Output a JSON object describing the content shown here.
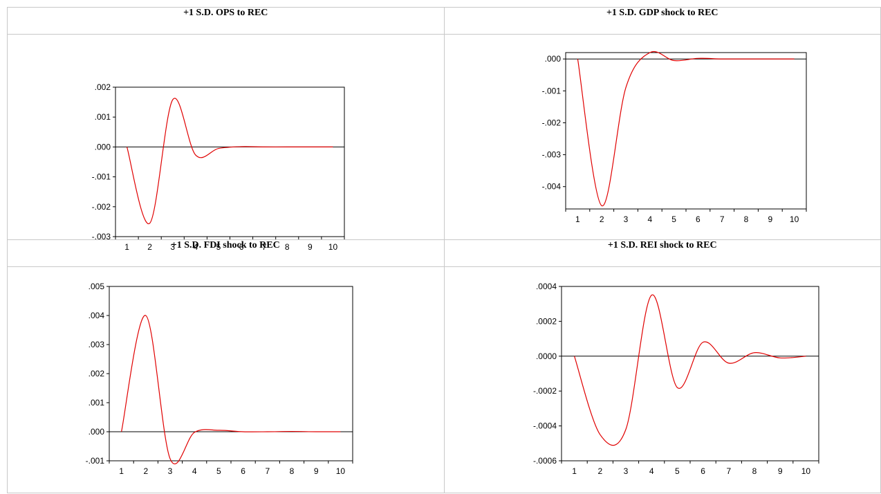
{
  "chart_data": [
    {
      "type": "line",
      "title": "+1 S.D. OPS to REC",
      "xlabel": "",
      "ylabel": "",
      "ylim": [
        -0.003,
        0.002
      ],
      "yticks": [
        0.002,
        0.001,
        0.0,
        -0.001,
        -0.002,
        -0.003
      ],
      "yticklabels": [
        ".002",
        ".001",
        ".000",
        "-.001",
        "-.002",
        "-.003"
      ],
      "xticklabels": [
        "1",
        "2",
        "3",
        "4",
        "5",
        "6",
        "7",
        "8",
        "9",
        "10"
      ],
      "series": [
        {
          "color": "#e00000",
          "x": [
            1,
            2,
            3,
            4,
            5,
            6,
            7,
            8,
            9,
            10
          ],
          "values": [
            0.0,
            -0.00255,
            0.00158,
            -0.00027,
            -5e-05,
            1e-05,
            0.0,
            0.0,
            0.0,
            0.0
          ]
        }
      ]
    },
    {
      "type": "line",
      "title": "+1 S.D. GDP shock to REC",
      "xlabel": "",
      "ylabel": "",
      "ylim": [
        -0.0047,
        0.0002
      ],
      "yticks": [
        0.0,
        -0.001,
        -0.002,
        -0.003,
        -0.004
      ],
      "yticklabels": [
        ".000",
        "-.001",
        "-.002",
        "-.003",
        "-.004"
      ],
      "xticklabels": [
        "1",
        "2",
        "3",
        "4",
        "5",
        "6",
        "7",
        "8",
        "9",
        "10"
      ],
      "series": [
        {
          "color": "#e00000",
          "x": [
            1,
            2,
            3,
            4,
            5,
            6,
            7,
            8,
            9,
            10
          ],
          "values": [
            0.0,
            -0.0046,
            -0.0009,
            0.0002,
            -5e-05,
            2e-05,
            0.0,
            0.0,
            0.0,
            0.0
          ]
        }
      ]
    },
    {
      "type": "line",
      "title": "+1 S.D. FDI shock to REC",
      "xlabel": "",
      "ylabel": "",
      "ylim": [
        -0.001,
        0.005
      ],
      "yticks": [
        0.005,
        0.004,
        0.003,
        0.002,
        0.001,
        0.0,
        -0.001
      ],
      "yticklabels": [
        ".005",
        ".004",
        ".003",
        ".002",
        ".001",
        ".000",
        "-.001"
      ],
      "xticklabels": [
        "1",
        "2",
        "3",
        "4",
        "5",
        "6",
        "7",
        "8",
        "9",
        "10"
      ],
      "series": [
        {
          "color": "#e00000",
          "x": [
            1,
            2,
            3,
            4,
            5,
            6,
            7,
            8,
            9,
            10
          ],
          "values": [
            0.0,
            0.004,
            -0.00093,
            -2e-05,
            5e-05,
            0.0,
            0.0,
            1e-05,
            0.0,
            0.0
          ]
        }
      ]
    },
    {
      "type": "line",
      "title": "+1 S.D. REI shock to REC",
      "xlabel": "",
      "ylabel": "",
      "ylim": [
        -0.0006,
        0.0004
      ],
      "yticks": [
        0.0004,
        0.0002,
        0.0,
        -0.0002,
        -0.0004,
        -0.0006
      ],
      "yticklabels": [
        ".0004",
        ".0002",
        ".0000",
        "-.0002",
        "-.0004",
        "-.0006"
      ],
      "xticklabels": [
        "1",
        "2",
        "3",
        "4",
        "5",
        "6",
        "7",
        "8",
        "9",
        "10"
      ],
      "series": [
        {
          "color": "#e00000",
          "x": [
            1,
            2,
            3,
            4,
            5,
            6,
            7,
            8,
            9,
            10
          ],
          "values": [
            0.0,
            -0.00045,
            -0.00042,
            0.00035,
            -0.00018,
            8e-05,
            -4e-05,
            2e-05,
            -1e-05,
            0.0
          ]
        }
      ]
    }
  ]
}
